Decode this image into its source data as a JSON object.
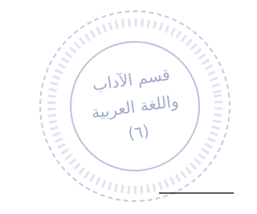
{
  "stamp": {
    "lines": [
      "قسم الآداب",
      "واللغة العربية",
      "(٦)"
    ]
  }
}
